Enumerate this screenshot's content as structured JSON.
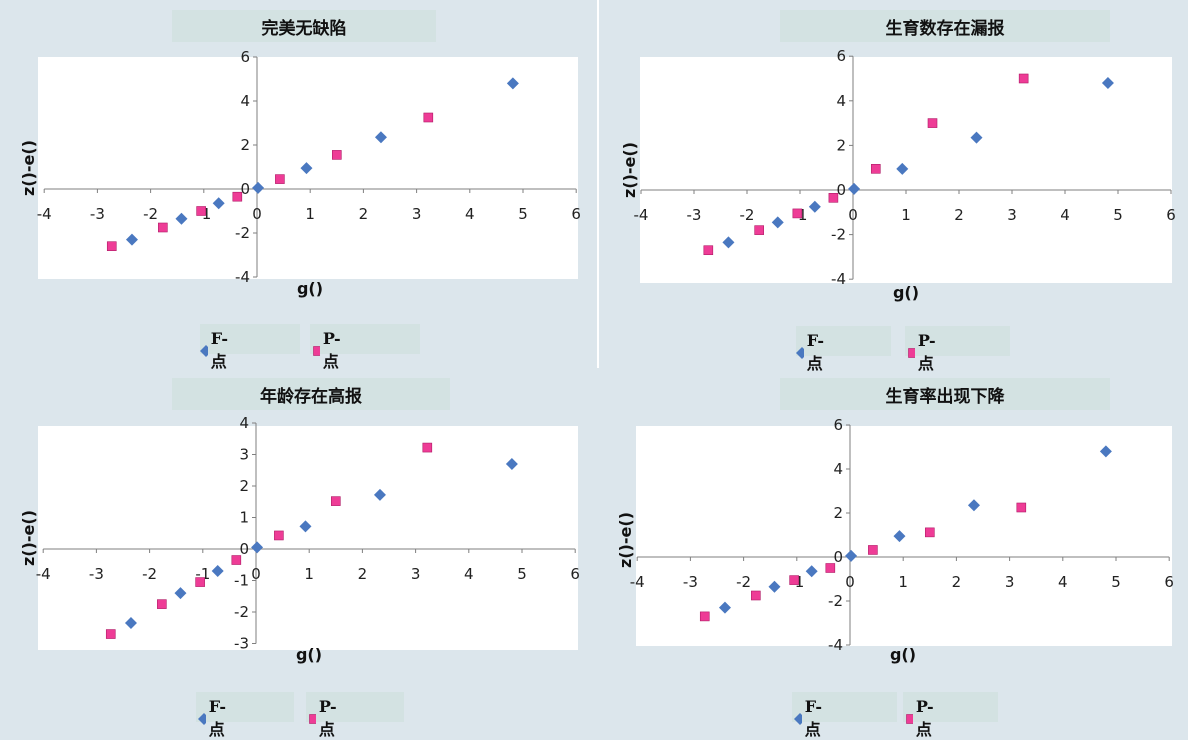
{
  "colors": {
    "f_point": "#4a78c0",
    "p_point": "#ee3c96",
    "axis": "#7f7f7f"
  },
  "legend": {
    "f_label": "F-点",
    "p_label": "P-点"
  },
  "chart_data": [
    {
      "type": "scatter",
      "title": "完美无缺陷",
      "xlabel": "g()",
      "ylabel": "z()-e()",
      "xlim": [
        -4,
        6
      ],
      "ylim": [
        -4,
        6
      ],
      "xticks": [
        -4,
        -3,
        -2,
        -1,
        0,
        1,
        2,
        3,
        4,
        5,
        6
      ],
      "yticks": [
        -4,
        -2,
        0,
        2,
        4,
        6
      ],
      "legend_position": "bottom",
      "series": [
        {
          "name": "F-点",
          "marker": "diamond",
          "points": [
            [
              -2.35,
              -2.3
            ],
            [
              -1.42,
              -1.35
            ],
            [
              -0.72,
              -0.65
            ],
            [
              0.02,
              0.05
            ],
            [
              0.93,
              0.95
            ],
            [
              2.33,
              2.35
            ],
            [
              4.81,
              4.8
            ]
          ]
        },
        {
          "name": "P-点",
          "marker": "square",
          "points": [
            [
              -2.73,
              -2.6
            ],
            [
              -1.77,
              -1.75
            ],
            [
              -1.05,
              -1.0
            ],
            [
              -0.37,
              -0.35
            ],
            [
              0.43,
              0.45
            ],
            [
              1.5,
              1.55
            ],
            [
              3.22,
              3.25
            ]
          ]
        }
      ]
    },
    {
      "type": "scatter",
      "title": "生育数存在漏报",
      "xlabel": "g()",
      "ylabel": "z()-e()",
      "xlim": [
        -4,
        6
      ],
      "ylim": [
        -4,
        6
      ],
      "xticks": [
        -4,
        -3,
        -2,
        -1,
        0,
        1,
        2,
        3,
        4,
        5,
        6
      ],
      "yticks": [
        -4,
        -2,
        0,
        2,
        4,
        6
      ],
      "legend_position": "bottom",
      "series": [
        {
          "name": "F-点",
          "marker": "diamond",
          "points": [
            [
              -2.35,
              -2.35
            ],
            [
              -1.42,
              -1.45
            ],
            [
              -0.72,
              -0.75
            ],
            [
              0.02,
              0.05
            ],
            [
              0.93,
              0.95
            ],
            [
              2.33,
              2.35
            ],
            [
              4.81,
              4.8
            ]
          ]
        },
        {
          "name": "P-点",
          "marker": "square",
          "points": [
            [
              -2.73,
              -2.7
            ],
            [
              -1.77,
              -1.8
            ],
            [
              -1.05,
              -1.05
            ],
            [
              -0.37,
              -0.35
            ],
            [
              0.43,
              0.95
            ],
            [
              1.5,
              3.0
            ],
            [
              3.22,
              5.0
            ]
          ]
        }
      ]
    },
    {
      "type": "scatter",
      "title": "年龄存在高报",
      "xlabel": "g()",
      "ylabel": "z()-e()",
      "xlim": [
        -4,
        6
      ],
      "ylim": [
        -3,
        4
      ],
      "xticks": [
        -4,
        -3,
        -2,
        -1,
        0,
        1,
        2,
        3,
        4,
        5,
        6
      ],
      "yticks": [
        -3,
        -2,
        -1,
        0,
        1,
        2,
        3,
        4
      ],
      "legend_position": "bottom",
      "series": [
        {
          "name": "F-点",
          "marker": "diamond",
          "points": [
            [
              -2.35,
              -2.35
            ],
            [
              -1.42,
              -1.4
            ],
            [
              -0.72,
              -0.7
            ],
            [
              0.02,
              0.05
            ],
            [
              0.93,
              0.72
            ],
            [
              2.33,
              1.72
            ],
            [
              4.81,
              2.7
            ]
          ]
        },
        {
          "name": "P-点",
          "marker": "square",
          "points": [
            [
              -2.73,
              -2.7
            ],
            [
              -1.77,
              -1.75
            ],
            [
              -1.05,
              -1.05
            ],
            [
              -0.37,
              -0.35
            ],
            [
              0.43,
              0.43
            ],
            [
              1.5,
              1.52
            ],
            [
              3.22,
              3.22
            ]
          ]
        }
      ]
    },
    {
      "type": "scatter",
      "title": "生育率出现下降",
      "xlabel": "g()",
      "ylabel": "z()-e()",
      "xlim": [
        -4,
        6
      ],
      "ylim": [
        -4,
        6
      ],
      "xticks": [
        -4,
        -3,
        -2,
        -1,
        0,
        1,
        2,
        3,
        4,
        5,
        6
      ],
      "yticks": [
        -4,
        -2,
        0,
        2,
        4,
        6
      ],
      "legend_position": "bottom",
      "series": [
        {
          "name": "F-点",
          "marker": "diamond",
          "points": [
            [
              -2.35,
              -2.3
            ],
            [
              -1.42,
              -1.35
            ],
            [
              -0.72,
              -0.65
            ],
            [
              0.02,
              0.05
            ],
            [
              0.93,
              0.95
            ],
            [
              2.33,
              2.35
            ],
            [
              4.81,
              4.8
            ]
          ]
        },
        {
          "name": "P-点",
          "marker": "square",
          "points": [
            [
              -2.73,
              -2.7
            ],
            [
              -1.77,
              -1.75
            ],
            [
              -1.05,
              -1.05
            ],
            [
              -0.37,
              -0.5
            ],
            [
              0.43,
              0.32
            ],
            [
              1.5,
              1.12
            ],
            [
              3.22,
              2.25
            ]
          ]
        }
      ]
    }
  ]
}
